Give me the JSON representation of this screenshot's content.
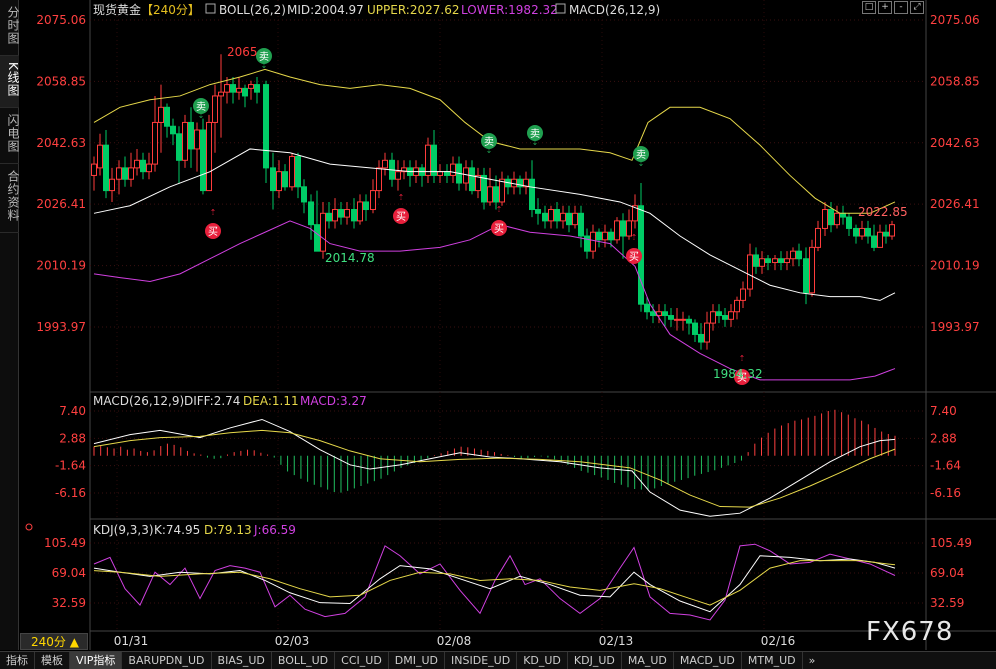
{
  "sidebar": {
    "items": [
      "分时图",
      "K线图",
      "闪电图",
      "合约资料"
    ],
    "active": 1
  },
  "main": {
    "instrument": "现货黄金",
    "period": "【240分】",
    "boll_name": "BOLL(26,2)",
    "mid": "MID:2004.97",
    "upper": "UPPER:2027.62",
    "lower": "LOWER:1982.32",
    "macd_name": "MACD(26,12,9)",
    "yticks": [
      "2075.06",
      "2058.85",
      "2042.63",
      "2026.41",
      "2010.19",
      "1993.97"
    ],
    "annotations": {
      "high": "2065",
      "low1": "2014.78",
      "low2": "1984.32",
      "last": "2022.85"
    },
    "signals": {
      "buy": "买",
      "sell": "卖"
    }
  },
  "macd": {
    "title": "MACD(26,12,9)",
    "diff": "DIFF:2.74",
    "dea": "DEA:1.11",
    "macd": "MACD:3.27",
    "yticks": [
      "7.40",
      "2.88",
      "-1.64",
      "-6.16"
    ]
  },
  "kdj": {
    "title": "KDJ(9,3,3)",
    "k": "K:74.95",
    "d": "D:79.13",
    "j": "J:66.59",
    "yticks": [
      "105.49",
      "69.04",
      "32.59"
    ]
  },
  "xaxis": {
    "dates": [
      "01/31",
      "02/03",
      "02/08",
      "02/13",
      "02/16"
    ]
  },
  "period_selector": {
    "label": "240分",
    "arrow": "▲"
  },
  "watermark": "FX678",
  "bottom_tabs": [
    "指标",
    "模板",
    "VIP指标",
    "BARUPDN_UD",
    "BIAS_UD",
    "BOLL_UD",
    "CCI_UD",
    "DMI_UD",
    "INSIDE_UD",
    "KD_UD",
    "KDJ_UD",
    "MA_UD",
    "MACD_UD",
    "MTM_UD"
  ],
  "active_tab": 2,
  "more_arrow": "»",
  "toolbar": [
    "□",
    "+",
    "-",
    "⤢"
  ],
  "colors": {
    "up": "#ff3c3c",
    "down": "#00cc66",
    "mid": "#ffffff",
    "upper": "#e6d84a",
    "lower": "#d040e0",
    "dea": "#e6d84a",
    "diff": "#ffffff",
    "j": "#d040e0"
  }
}
